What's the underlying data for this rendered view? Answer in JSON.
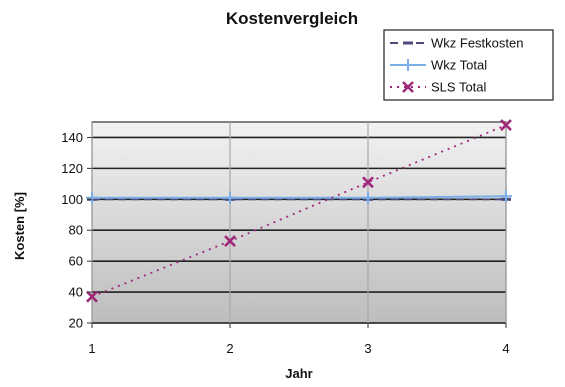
{
  "chart_data": {
    "type": "line",
    "title": "Kostenvergleich",
    "xlabel": "Jahr",
    "ylabel": "Kosten [%]",
    "x": [
      1,
      2,
      3,
      4
    ],
    "xlim": [
      1,
      4
    ],
    "ylim": [
      20,
      150
    ],
    "yticks": [
      20,
      40,
      60,
      80,
      100,
      120,
      140
    ],
    "xticks": [
      1,
      2,
      3,
      4
    ],
    "grid": true,
    "legend_position": "top-right",
    "series": [
      {
        "name": "Wkz Festkosten",
        "values": [
          100,
          100,
          100,
          100
        ],
        "color": "#4b4b7a",
        "style": "dashed",
        "marker": "dash"
      },
      {
        "name": "Wkz Total",
        "values": [
          101,
          101,
          101,
          102
        ],
        "color": "#7aaee8",
        "style": "solid",
        "marker": "plus"
      },
      {
        "name": "SLS Total",
        "values": [
          37,
          73,
          111,
          148
        ],
        "color": "#a0287a",
        "style": "dotted",
        "marker": "x"
      }
    ]
  }
}
